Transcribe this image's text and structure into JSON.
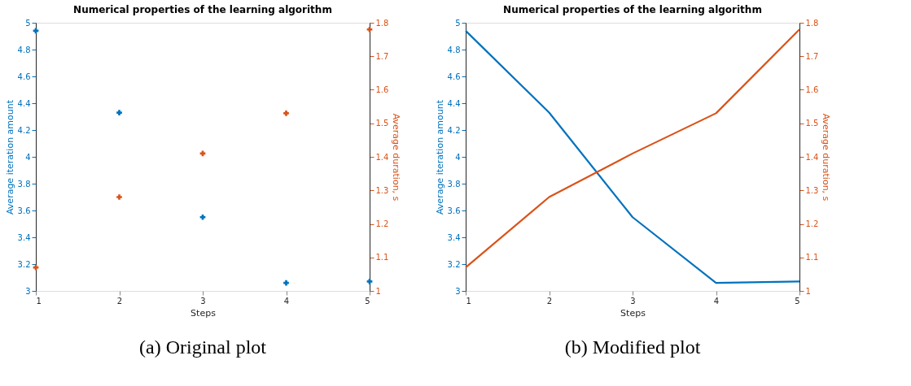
{
  "chart_data": [
    {
      "type": "scatter",
      "title": "Numerical properties of the learning algorithm",
      "xlabel": "Steps",
      "ylabel": "Average iteration amount",
      "y2label": "Average duration, s",
      "x": [
        1,
        2,
        3,
        4,
        5
      ],
      "xlim": [
        1,
        5
      ],
      "xticks": [
        1,
        2,
        3,
        4,
        5
      ],
      "ylim": [
        3,
        5
      ],
      "yticks": [
        3,
        3.2,
        3.4,
        3.6,
        3.8,
        4,
        4.2,
        4.4,
        4.6,
        4.8,
        5
      ],
      "y2lim": [
        1,
        1.8
      ],
      "y2ticks": [
        1,
        1.1,
        1.2,
        1.3,
        1.4,
        1.5,
        1.6,
        1.7,
        1.8
      ],
      "marker": "cross",
      "grid": false,
      "annotations": [
        "(a) Original plot"
      ],
      "series": [
        {
          "color": "#0072bd",
          "values": [
            4.94,
            4.33,
            3.55,
            3.06,
            3.07
          ]
        },
        {
          "color": "#d95319",
          "axis": "y2",
          "values": [
            1.07,
            1.28,
            1.41,
            1.53,
            1.78
          ]
        }
      ]
    },
    {
      "type": "line",
      "title": "Numerical properties of the learning algorithm",
      "xlabel": "Steps",
      "ylabel": "Average iteration amount",
      "y2label": "Average duration, s",
      "x": [
        1,
        2,
        3,
        4,
        5
      ],
      "xlim": [
        1,
        5
      ],
      "xticks": [
        1,
        2,
        3,
        4,
        5
      ],
      "ylim": [
        3,
        5
      ],
      "yticks": [
        3,
        3.2,
        3.4,
        3.6,
        3.8,
        4,
        4.2,
        4.4,
        4.6,
        4.8,
        5
      ],
      "y2lim": [
        1,
        1.8
      ],
      "y2ticks": [
        1,
        1.1,
        1.2,
        1.3,
        1.4,
        1.5,
        1.6,
        1.7,
        1.8
      ],
      "line_style": "solid",
      "grid": false,
      "annotations": [
        "(b) Modified plot"
      ],
      "series": [
        {
          "color": "#0072bd",
          "values": [
            4.94,
            4.33,
            3.55,
            3.06,
            3.07
          ]
        },
        {
          "color": "#d95319",
          "axis": "y2",
          "values": [
            1.07,
            1.28,
            1.41,
            1.53,
            1.78
          ]
        }
      ]
    }
  ]
}
